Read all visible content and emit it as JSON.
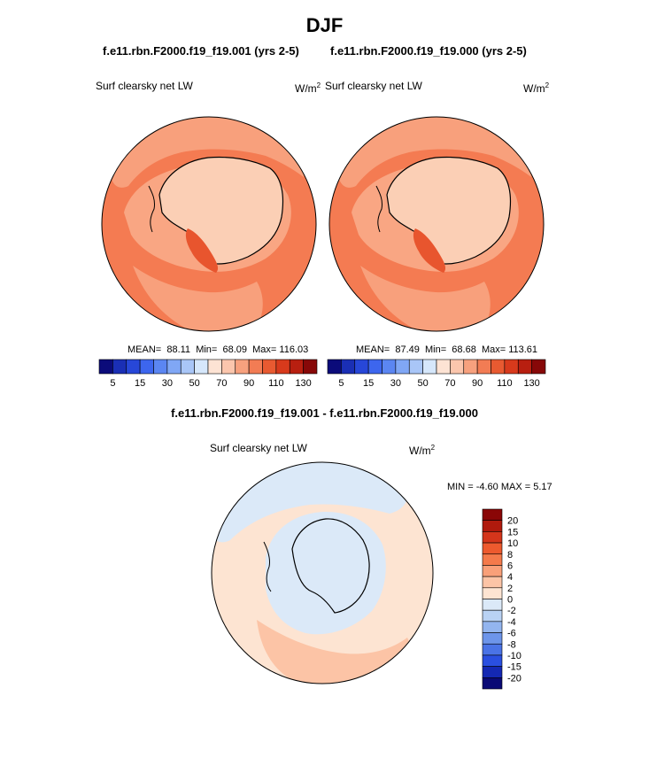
{
  "chart_data": [
    {
      "type": "contour-map",
      "panel": "case1",
      "title": "f.e11.rbn.F2000.f19_f19.001 (yrs 2-5)",
      "variable": "Surf clearsky net LW",
      "units": "W/m",
      "units_sup": "2",
      "mean_label": "MEAN=",
      "mean": "88.11",
      "min_label": "Min=",
      "min": "68.09",
      "max_label": "Max=",
      "max": "116.03",
      "colorbar_labels": [
        "5",
        "15",
        "30",
        "50",
        "70",
        "90",
        "110",
        "130"
      ]
    },
    {
      "type": "contour-map",
      "panel": "case2",
      "title": "f.e11.rbn.F2000.f19_f19.000 (yrs 2-5)",
      "variable": "Surf clearsky net LW",
      "units": "W/m",
      "units_sup": "2",
      "mean_label": "MEAN=",
      "mean": "87.49",
      "min_label": "Min=",
      "min": "68.68",
      "max_label": "Max=",
      "max": "113.61",
      "colorbar_labels": [
        "5",
        "15",
        "30",
        "50",
        "70",
        "90",
        "110",
        "130"
      ]
    },
    {
      "type": "contour-map",
      "panel": "difference",
      "title": "f.e11.rbn.F2000.f19_f19.001 - f.e11.rbn.F2000.f19_f19.000",
      "variable": "Surf clearsky net LW",
      "units": "W/m",
      "units_sup": "2",
      "minmax_text": "MIN =  -4.60 MAX =  5.17",
      "colorbar_labels": [
        "20",
        "15",
        "10",
        "8",
        "6",
        "4",
        "2",
        "0",
        "-2",
        "-4",
        "-6",
        "-8",
        "-10",
        "-15",
        "-20"
      ]
    }
  ],
  "page": {
    "season": "DJF"
  },
  "colors": {
    "abs_scale": [
      "#0b0b7a",
      "#1a2fb5",
      "#2747d8",
      "#3d66ee",
      "#5b86f2",
      "#80a7f5",
      "#a9c6f7",
      "#d6e7fb",
      "#fde3d4",
      "#fbc6ad",
      "#f7a17e",
      "#f27c54",
      "#e85a31",
      "#d83a1c",
      "#b81f10",
      "#870808"
    ],
    "diff_scale": [
      "#8a0606",
      "#b01a0d",
      "#d4351b",
      "#ed5a2e",
      "#f47a4b",
      "#f9a079",
      "#fcc4a6",
      "#fde4d2",
      "#dbe9f8",
      "#b9d2f4",
      "#93b5ef",
      "#6d95ea",
      "#4a73e6",
      "#2a4fe0",
      "#1428b3",
      "#0a0a75"
    ]
  }
}
